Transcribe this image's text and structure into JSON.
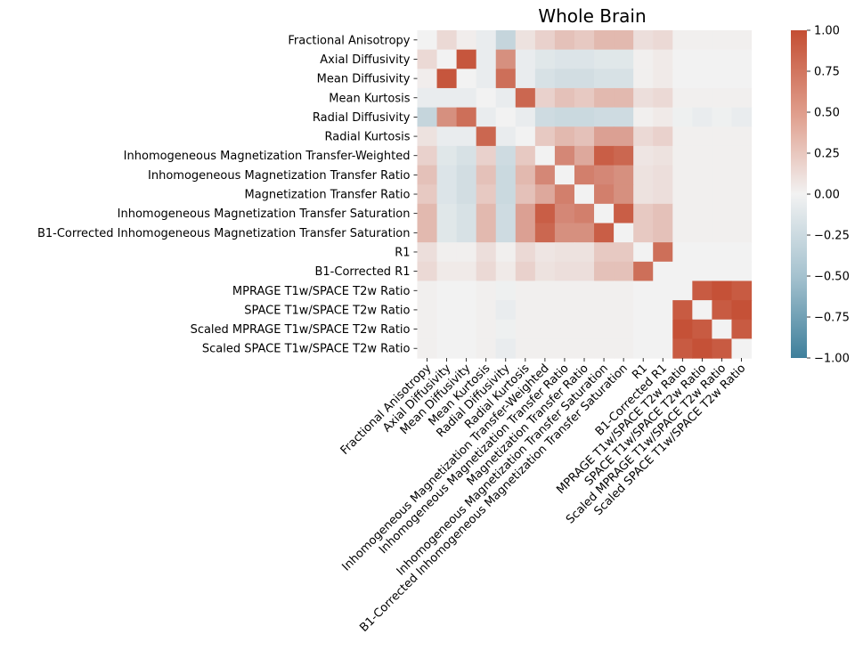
{
  "chart_data": {
    "type": "heatmap",
    "title": "Whole Brain",
    "labels": [
      "Fractional Anisotropy",
      "Axial Diffusivity",
      "Mean Diffusivity",
      "Mean Kurtosis",
      "Radial Diffusivity",
      "Radial Kurtosis",
      "Inhomogeneous Magnetization Transfer-Weighted",
      "Inhomogeneous Magnetization Transfer Ratio",
      "Magnetization Transfer Ratio",
      "Inhomogeneous Magnetization Transfer Saturation",
      "B1-Corrected Inhomogeneous Magnetization Transfer Saturation",
      "R1",
      "B1-Corrected R1",
      "MPRAGE T1w/SPACE T2w Ratio",
      "SPACE T1w/SPACE T2w Ratio",
      "Scaled MPRAGE T1w/SPACE T2w Ratio",
      "Scaled SPACE T1w/SPACE T2w Ratio"
    ],
    "matrix": [
      [
        0,
        0.15,
        0.03,
        -0.05,
        -0.25,
        0.1,
        0.2,
        0.3,
        0.25,
        0.35,
        0.35,
        0.12,
        0.15,
        0.02,
        0.02,
        0.02,
        0.02
      ],
      [
        0.15,
        0,
        0.95,
        -0.05,
        0.6,
        -0.05,
        -0.1,
        -0.12,
        -0.12,
        -0.1,
        -0.1,
        0.02,
        0.05,
        0,
        0,
        0,
        0
      ],
      [
        0.03,
        0.95,
        0,
        -0.05,
        0.8,
        -0.05,
        -0.15,
        -0.18,
        -0.18,
        -0.15,
        -0.15,
        0.02,
        0.05,
        0,
        0,
        0,
        0
      ],
      [
        -0.05,
        -0.05,
        -0.05,
        0,
        -0.05,
        0.85,
        0.2,
        0.3,
        0.25,
        0.35,
        0.35,
        0.12,
        0.15,
        0.02,
        0.02,
        0.02,
        0.02
      ],
      [
        -0.25,
        0.6,
        0.8,
        -0.05,
        0,
        -0.05,
        -0.2,
        -0.22,
        -0.22,
        -0.2,
        -0.2,
        0.02,
        0.05,
        -0.02,
        -0.05,
        -0.02,
        -0.05
      ],
      [
        0.1,
        -0.05,
        -0.05,
        0.85,
        -0.05,
        0,
        0.25,
        0.35,
        0.3,
        0.5,
        0.5,
        0.15,
        0.2,
        0.02,
        0.02,
        0.02,
        0.02
      ],
      [
        0.2,
        -0.1,
        -0.15,
        0.2,
        -0.2,
        0.25,
        0,
        0.65,
        0.45,
        0.9,
        0.85,
        0.08,
        0.1,
        0.02,
        0.02,
        0.02,
        0.02
      ],
      [
        0.3,
        -0.12,
        -0.18,
        0.3,
        -0.22,
        0.35,
        0.65,
        0,
        0.7,
        0.65,
        0.6,
        0.1,
        0.12,
        0.02,
        0.02,
        0.02,
        0.02
      ],
      [
        0.25,
        -0.12,
        -0.18,
        0.25,
        -0.22,
        0.3,
        0.45,
        0.7,
        0,
        0.7,
        0.6,
        0.1,
        0.12,
        0.02,
        0.02,
        0.02,
        0.02
      ],
      [
        0.35,
        -0.1,
        -0.15,
        0.35,
        -0.2,
        0.5,
        0.9,
        0.65,
        0.7,
        0,
        0.9,
        0.25,
        0.3,
        0.02,
        0.02,
        0.02,
        0.02
      ],
      [
        0.35,
        -0.1,
        -0.15,
        0.35,
        -0.2,
        0.5,
        0.85,
        0.6,
        0.6,
        0.9,
        0,
        0.25,
        0.3,
        0.02,
        0.02,
        0.02,
        0.02
      ],
      [
        0.12,
        0.02,
        0.02,
        0.12,
        0.02,
        0.15,
        0.08,
        0.1,
        0.1,
        0.25,
        0.25,
        0,
        0.8,
        0,
        0,
        0,
        0
      ],
      [
        0.15,
        0.05,
        0.05,
        0.15,
        0.05,
        0.2,
        0.1,
        0.12,
        0.12,
        0.3,
        0.3,
        0.8,
        0,
        0,
        0,
        0,
        0
      ],
      [
        0.02,
        0,
        0,
        0.02,
        -0.02,
        0.02,
        0.02,
        0.02,
        0.02,
        0.02,
        0.02,
        0,
        0,
        0,
        0.92,
        0.98,
        0.92
      ],
      [
        0.02,
        0,
        0,
        0.02,
        -0.05,
        0.02,
        0.02,
        0.02,
        0.02,
        0.02,
        0.02,
        0,
        0,
        0.92,
        0,
        0.92,
        0.98
      ],
      [
        0.02,
        0,
        0,
        0.02,
        -0.02,
        0.02,
        0.02,
        0.02,
        0.02,
        0.02,
        0.02,
        0,
        0,
        0.98,
        0.92,
        0,
        0.92
      ],
      [
        0.02,
        0,
        0,
        0.02,
        -0.05,
        0.02,
        0.02,
        0.02,
        0.02,
        0.02,
        0.02,
        0,
        0,
        0.92,
        0.98,
        0.92,
        0
      ]
    ],
    "colorbar": {
      "range": [
        -1,
        1
      ],
      "ticks": [
        "1.00",
        "0.75",
        "0.50",
        "0.25",
        "0.00",
        "−0.25",
        "−0.50",
        "−0.75",
        "−1.00"
      ],
      "tick_values": [
        1,
        0.75,
        0.5,
        0.25,
        0,
        -0.25,
        -0.5,
        -0.75,
        -1
      ]
    },
    "colors": {
      "negative": "#3e7f9b",
      "neutral": "#f2f2f2",
      "positive": "#c44e33"
    },
    "legend": "right"
  }
}
